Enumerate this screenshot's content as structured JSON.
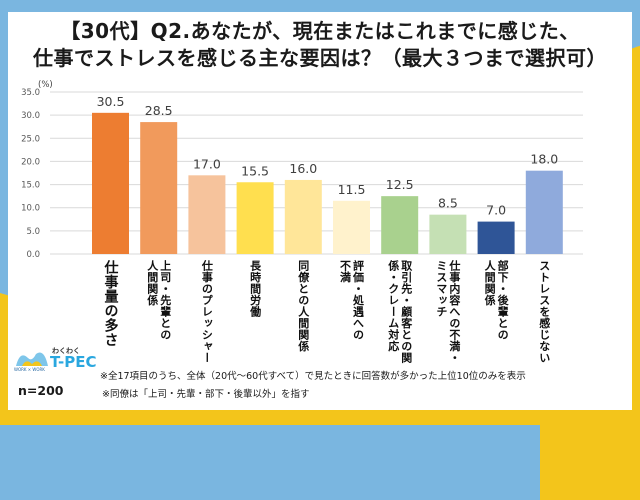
{
  "title_line1": "【30代】Q2.あなたが、現在またはこれまでに感じた、",
  "title_line2": "仕事でストレスを感じる主な要因は？（最大３つまで選択可）",
  "chart_data": {
    "type": "bar",
    "title": "【30代】Q2.あなたが、現在またはこれまでに感じた、仕事でストレスを感じる主な要因は？（最大３つまで選択可）",
    "xlabel": "",
    "ylabel": "(%)",
    "ylim": [
      0,
      35
    ],
    "yticks": [
      "0.0",
      "5.0",
      "10.0",
      "15.0",
      "20.0",
      "25.0",
      "30.0",
      "35.0"
    ],
    "grid": true,
    "categories": [
      [
        "仕事量の多さ"
      ],
      [
        "上司・先輩との",
        "人間関係"
      ],
      [
        "仕事のプレッシャー"
      ],
      [
        "長時間労働"
      ],
      [
        "同僚との人間関係"
      ],
      [
        "評価・処遇への",
        "不満"
      ],
      [
        "取引先・顧客との関",
        "係・クレーム対応"
      ],
      [
        "仕事内容への不満・",
        "ミスマッチ"
      ],
      [
        "部下・後輩との",
        "人間関係"
      ],
      [
        "ストレスを感じない"
      ]
    ],
    "values": [
      30.5,
      28.5,
      17.0,
      15.5,
      16.0,
      11.5,
      12.5,
      8.5,
      7.0,
      18.0
    ],
    "value_labels": [
      "30.5",
      "28.5",
      "17.0",
      "15.5",
      "16.0",
      "11.5",
      "12.5",
      "8.5",
      "7.0",
      "18.0"
    ],
    "colors": [
      "#ed7d31",
      "#f19a5c",
      "#f6c39c",
      "#ffdf4f",
      "#ffe699",
      "#fff2cc",
      "#a9d18e",
      "#c5e0b4",
      "#2f5597",
      "#8faadc"
    ]
  },
  "footer": {
    "logo_kana": "わくわく",
    "logo_text": "T-PEC",
    "logo_sub": "WORK × WORK",
    "n_label": "n=200",
    "note1": "※全17項目のうち、全体（20代～60代すべて）で見たときに回答数が多かった上位10位のみを表示",
    "note2": "※同僚は「上司・先輩・部下・後輩以外」を指す"
  }
}
